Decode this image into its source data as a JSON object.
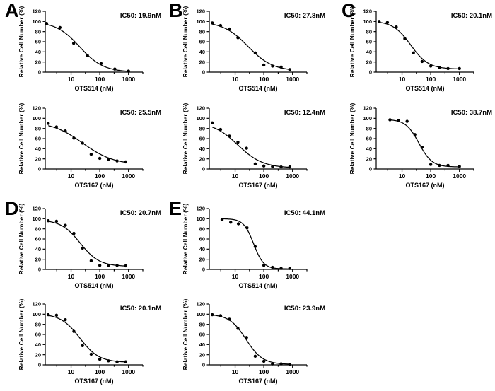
{
  "figure": {
    "background": "#ffffff",
    "ink_color": "#000000",
    "panel_letters": [
      "A",
      "B",
      "C",
      "D",
      "E"
    ]
  },
  "chart_data": [
    {
      "type": "scatter",
      "panel": "A",
      "ic50_label": "IC50: 19.9nM",
      "xlabel": "OTS514 (nM)",
      "ylabel": "Relative Cell Number (%)",
      "x": [
        1.4,
        4.1,
        12.3,
        37,
        111,
        333,
        1000
      ],
      "y": [
        96,
        88,
        57,
        33,
        17,
        6,
        2
      ],
      "xticks": [
        10,
        100,
        1000
      ],
      "yticks": [
        0,
        20,
        40,
        60,
        80,
        100,
        120
      ],
      "ylim": [
        0,
        120
      ],
      "xscale": "log",
      "grid": false,
      "curve": {
        "top": 100,
        "bottom": 0,
        "ic50": 19.9,
        "hill": 1.05
      }
    },
    {
      "type": "scatter",
      "panel": "B",
      "ic50_label": "IC50: 27.8nM",
      "xlabel": "OTS514 (nM)",
      "ylabel": "Relative Cell Number (%)",
      "x": [
        1.6,
        3.1,
        6.3,
        12.5,
        50,
        100,
        200,
        400,
        800
      ],
      "y": [
        97,
        92,
        85,
        68,
        38,
        14,
        12,
        10,
        5
      ],
      "xticks": [
        10,
        100,
        1000
      ],
      "yticks": [
        0,
        20,
        40,
        60,
        80,
        100,
        120
      ],
      "ylim": [
        0,
        120
      ],
      "xscale": "log",
      "grid": false,
      "curve": {
        "top": 100,
        "bottom": 2,
        "ic50": 27.8,
        "hill": 1.0
      }
    },
    {
      "type": "scatter",
      "panel": "C",
      "ic50_label": "IC50: 20.1nM",
      "xlabel": "OTS514 (nM)",
      "ylabel": "Relative Cell Number (%)",
      "x": [
        1.6,
        3.1,
        6.3,
        12.5,
        25,
        50,
        100,
        200,
        400,
        1000
      ],
      "y": [
        100,
        98,
        89,
        66,
        38,
        21,
        12,
        9,
        7,
        7
      ],
      "xticks": [
        10,
        100,
        1000
      ],
      "yticks": [
        0,
        20,
        40,
        60,
        80,
        100,
        120
      ],
      "ylim": [
        0,
        120
      ],
      "xscale": "log",
      "grid": false,
      "curve": {
        "top": 101,
        "bottom": 6,
        "ic50": 20.1,
        "hill": 1.4
      }
    },
    {
      "type": "scatter",
      "panel": "A",
      "ic50_label": "IC50: 25.5nM",
      "xlabel": "OTS167 (nM)",
      "ylabel": "Relative Cell Number (%)",
      "x": [
        1.6,
        3.1,
        6.3,
        12.5,
        25,
        50,
        100,
        200,
        400,
        800
      ],
      "y": [
        90,
        83,
        75,
        61,
        51,
        29,
        21,
        19,
        16,
        14
      ],
      "xticks": [
        10,
        100,
        1000
      ],
      "yticks": [
        0,
        20,
        40,
        60,
        80,
        100,
        120
      ],
      "ylim": [
        0,
        120
      ],
      "xscale": "log",
      "grid": false,
      "curve": {
        "top": 94,
        "bottom": 8,
        "ic50": 25.5,
        "hill": 0.8
      }
    },
    {
      "type": "scatter",
      "panel": "B",
      "ic50_label": "IC50: 12.4nM",
      "xlabel": "OTS167 (nM)",
      "ylabel": "Relative Cell Number (%)",
      "x": [
        1.6,
        3.1,
        6.3,
        12.5,
        25,
        50,
        100,
        200,
        400,
        800
      ],
      "y": [
        91,
        78,
        65,
        53,
        41,
        10,
        6,
        5,
        4,
        4
      ],
      "xticks": [
        10,
        100,
        1000
      ],
      "yticks": [
        0,
        20,
        40,
        60,
        80,
        100,
        120
      ],
      "ylim": [
        0,
        120
      ],
      "xscale": "log",
      "grid": false,
      "curve": {
        "top": 93,
        "bottom": 2,
        "ic50": 12.4,
        "hill": 1.0
      }
    },
    {
      "type": "scatter",
      "panel": "C",
      "ic50_label": "IC50: 38.7nM",
      "xlabel": "OTS167 (nM)",
      "ylabel": "Relative Cell Number (%)",
      "x": [
        3.8,
        7.5,
        15,
        28,
        50,
        100,
        200,
        400,
        1000
      ],
      "y": [
        97,
        96,
        94,
        68,
        43,
        9,
        7,
        7,
        5
      ],
      "xticks": [
        10,
        100,
        1000
      ],
      "yticks": [
        0,
        20,
        40,
        60,
        80,
        100,
        120
      ],
      "ylim": [
        0,
        120
      ],
      "xscale": "log",
      "grid": false,
      "curve": {
        "top": 98,
        "bottom": 4,
        "ic50": 38.7,
        "hill": 1.9
      }
    },
    {
      "type": "scatter",
      "panel": "D",
      "ic50_label": "IC50: 20.7nM",
      "xlabel": "OTS514 (nM)",
      "ylabel": "Relative Cell Number (%)",
      "x": [
        1.6,
        3.1,
        6.3,
        12.5,
        25,
        50,
        100,
        200,
        400,
        800
      ],
      "y": [
        96,
        95,
        87,
        71,
        42,
        17,
        8,
        8,
        8,
        7
      ],
      "xticks": [
        10,
        100,
        1000
      ],
      "yticks": [
        0,
        20,
        40,
        60,
        80,
        100,
        120
      ],
      "ylim": [
        0,
        120
      ],
      "xscale": "log",
      "grid": false,
      "curve": {
        "top": 98,
        "bottom": 6,
        "ic50": 20.7,
        "hill": 1.3
      }
    },
    {
      "type": "scatter",
      "panel": "E",
      "ic50_label": "IC50: 44.1nM",
      "xlabel": "OTS514 (nM)",
      "ylabel": "Relative Cell Number (%)",
      "x": [
        3.5,
        7,
        13,
        26,
        50,
        100,
        200,
        400,
        800
      ],
      "y": [
        98,
        93,
        90,
        82,
        45,
        8,
        4,
        2,
        2
      ],
      "xticks": [
        10,
        100,
        1000
      ],
      "yticks": [
        0,
        20,
        40,
        60,
        80,
        100,
        120
      ],
      "ylim": [
        0,
        120
      ],
      "xscale": "log",
      "grid": false,
      "curve": {
        "top": 100,
        "bottom": 1,
        "ic50": 44.1,
        "hill": 2.5
      }
    },
    {
      "type": "scatter",
      "panel": "D",
      "ic50_label": "IC50: 20.1nM",
      "xlabel": "OTS167 (nM)",
      "ylabel": "Relative Cell Number (%)",
      "x": [
        1.6,
        3.1,
        6.3,
        12.5,
        25,
        50,
        100,
        200,
        400,
        800
      ],
      "y": [
        99,
        98,
        89,
        66,
        38,
        21,
        11,
        8,
        6,
        6
      ],
      "xticks": [
        10,
        100,
        1000
      ],
      "yticks": [
        0,
        20,
        40,
        60,
        80,
        100,
        120
      ],
      "ylim": [
        0,
        120
      ],
      "xscale": "log",
      "grid": false,
      "curve": {
        "top": 101,
        "bottom": 5,
        "ic50": 20.1,
        "hill": 1.3
      }
    },
    {
      "type": "scatter",
      "panel": "E",
      "ic50_label": "IC50: 23.9nM",
      "xlabel": "OTS167 (nM)",
      "ylabel": "Relative Cell Number (%)",
      "x": [
        1.6,
        3.1,
        6.3,
        12.5,
        25,
        50,
        100,
        200,
        400,
        800
      ],
      "y": [
        99,
        97,
        90,
        72,
        54,
        17,
        7,
        2,
        2,
        1
      ],
      "xticks": [
        10,
        100,
        1000
      ],
      "yticks": [
        0,
        20,
        40,
        60,
        80,
        100,
        120
      ],
      "ylim": [
        0,
        120
      ],
      "xscale": "log",
      "grid": false,
      "curve": {
        "top": 100,
        "bottom": 1,
        "ic50": 23.9,
        "hill": 1.5
      }
    }
  ]
}
